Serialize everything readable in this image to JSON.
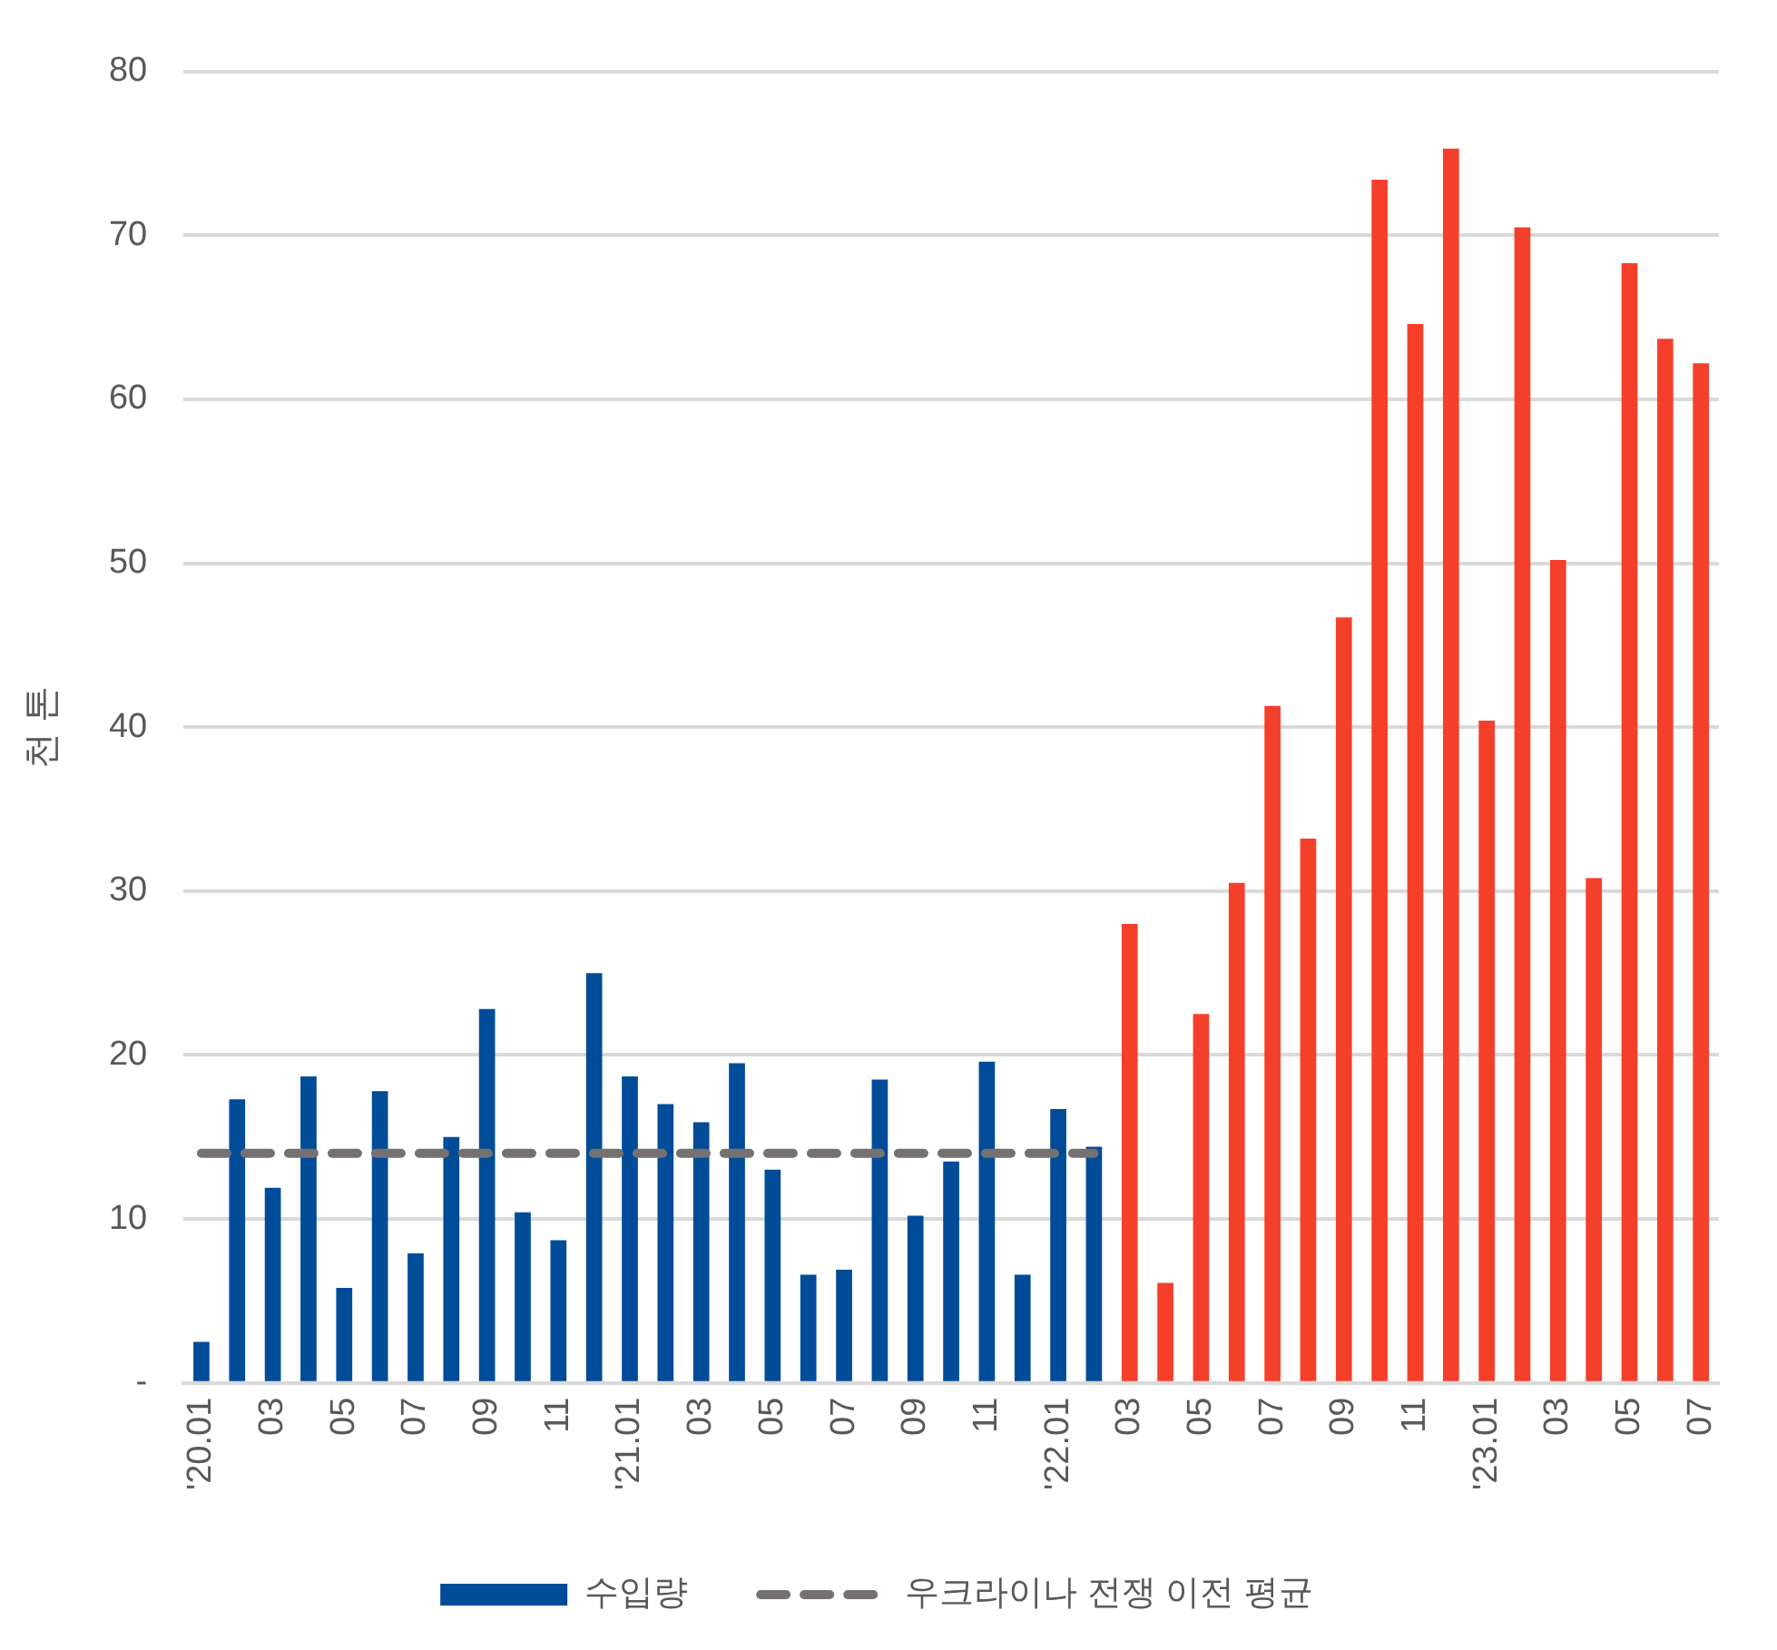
{
  "chart_data": {
    "type": "bar",
    "ylabel": "천 톤",
    "categories": [
      "'20.01",
      null,
      "03",
      null,
      "05",
      null,
      "07",
      null,
      "09",
      null,
      "11",
      null,
      "'21.01",
      null,
      "03",
      null,
      "05",
      null,
      "07",
      null,
      "09",
      null,
      "11",
      null,
      "'22.01",
      null,
      "03",
      null,
      "05",
      null,
      "07",
      null,
      "09",
      null,
      "11",
      null,
      "'23.01",
      null,
      "03",
      null,
      "05",
      null,
      "07"
    ],
    "series": [
      {
        "name": "수입량",
        "color": "#004c98",
        "colors": [
          "#004c98",
          "#004c98",
          "#004c98",
          "#004c98",
          "#004c98",
          "#004c98",
          "#004c98",
          "#004c98",
          "#004c98",
          "#004c98",
          "#004c98",
          "#004c98",
          "#004c98",
          "#004c98",
          "#004c98",
          "#004c98",
          "#004c98",
          "#004c98",
          "#004c98",
          "#004c98",
          "#004c98",
          "#004c98",
          "#004c98",
          "#004c98",
          "#004c98",
          "#004c98",
          "#f4402a",
          "#f4402a",
          "#f4402a",
          "#f4402a",
          "#f4402a",
          "#f4402a",
          "#f4402a",
          "#f4402a",
          "#f4402a",
          "#f4402a",
          "#f4402a",
          "#f4402a",
          "#f4402a",
          "#f4402a",
          "#f4402a",
          "#f4402a",
          "#f4402a"
        ],
        "values": [
          2.5,
          17.3,
          11.9,
          18.7,
          5.8,
          17.8,
          7.9,
          15.0,
          22.8,
          10.4,
          8.7,
          25.0,
          18.7,
          17.0,
          15.9,
          19.5,
          13.0,
          6.6,
          6.9,
          18.5,
          10.2,
          13.5,
          19.6,
          6.6,
          16.7,
          14.4,
          28.0,
          6.1,
          22.5,
          30.5,
          41.3,
          33.2,
          46.7,
          73.4,
          64.6,
          75.3,
          40.4,
          70.5,
          50.2,
          30.8,
          68.3,
          63.7,
          62.2
        ]
      },
      {
        "name": "우크라이나 전쟁 이전 평균",
        "type": "line",
        "color": "#767171",
        "line_style": "dashed",
        "marker": "none",
        "values": [
          14,
          14,
          14,
          14,
          14,
          14,
          14,
          14,
          14,
          14,
          14,
          14,
          14,
          14,
          14,
          14,
          14,
          14,
          14,
          14,
          14,
          14,
          14,
          14,
          14,
          14,
          null,
          null,
          null,
          null,
          null,
          null,
          null,
          null,
          null,
          null,
          null,
          null,
          null,
          null,
          null,
          null,
          null
        ]
      }
    ],
    "ylim": [
      0,
      80
    ],
    "yticks": [
      {
        "value": 0,
        "label": "-"
      },
      10,
      20,
      30,
      40,
      50,
      60,
      70,
      80
    ],
    "grid": "y",
    "legend": "bottom"
  }
}
